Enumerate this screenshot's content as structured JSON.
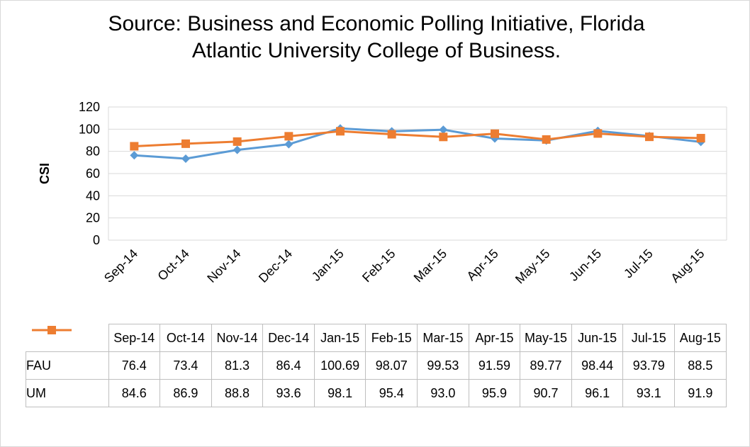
{
  "chart_data": {
    "type": "line",
    "title": "Source: Business and Economic Polling Initiative, Florida Atlantic University College of Business.",
    "y_label": "CSI",
    "categories": [
      "Sep-14",
      "Oct-14",
      "Nov-14",
      "Dec-14",
      "Jan-15",
      "Feb-15",
      "Mar-15",
      "Apr-15",
      "May-15",
      "Jun-15",
      "Jul-15",
      "Aug-15"
    ],
    "series": [
      {
        "name": "FAU",
        "color": "#5b9bd5",
        "marker": "diamond",
        "values": [
          76.4,
          73.4,
          81.3,
          86.4,
          100.69,
          98.07,
          99.53,
          91.59,
          89.77,
          98.44,
          93.79,
          88.5
        ]
      },
      {
        "name": "UM",
        "color": "#ed7d31",
        "marker": "square",
        "values": [
          84.6,
          86.9,
          88.8,
          93.6,
          98.1,
          95.4,
          93.0,
          95.9,
          90.7,
          96.1,
          93.1,
          91.9
        ],
        "value_labels": [
          "84.6",
          "86.9",
          "88.8",
          "93.6",
          "98.1",
          "95.4",
          "93.0",
          "95.9",
          "90.7",
          "96.1",
          "93.1",
          "91.9"
        ]
      }
    ],
    "ylim": [
      0,
      120
    ],
    "yticks": [
      0,
      20,
      40,
      60,
      80,
      100,
      120
    ],
    "grid": true,
    "data_table": true
  }
}
